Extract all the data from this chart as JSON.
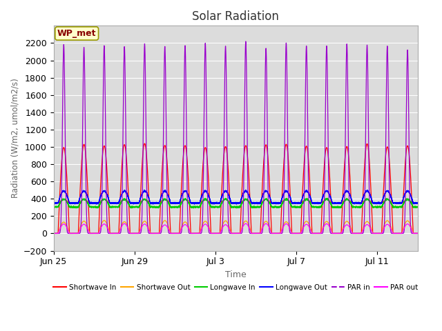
{
  "title": "Solar Radiation",
  "xlabel": "Time",
  "ylabel": "Radiation (W/m2, umol/m2/s)",
  "ylim": [
    -200,
    2400
  ],
  "yticks": [
    -200,
    0,
    200,
    400,
    600,
    800,
    1000,
    1200,
    1400,
    1600,
    1800,
    2000,
    2200
  ],
  "background_color": "#dcdcdc",
  "annotation_text": "WP_met",
  "annotation_bg": "#ffffcc",
  "annotation_border": "#999900",
  "series": {
    "shortwave_in": {
      "color": "#ff0000",
      "label": "Shortwave In"
    },
    "shortwave_out": {
      "color": "#ffa500",
      "label": "Shortwave Out"
    },
    "longwave_in": {
      "color": "#00cc00",
      "label": "Longwave In"
    },
    "longwave_out": {
      "color": "#0000ff",
      "label": "Longwave Out"
    },
    "par_in": {
      "color": "#9900cc",
      "label": "PAR in"
    },
    "par_out": {
      "color": "#ff00ff",
      "label": "PAR out"
    }
  },
  "n_days": 18,
  "tick_positions": [
    0,
    4,
    8,
    12,
    16
  ],
  "tick_labels": [
    "Jun 25",
    "Jun 29",
    "Jul 3",
    "Jul 7",
    "Jul 11"
  ]
}
